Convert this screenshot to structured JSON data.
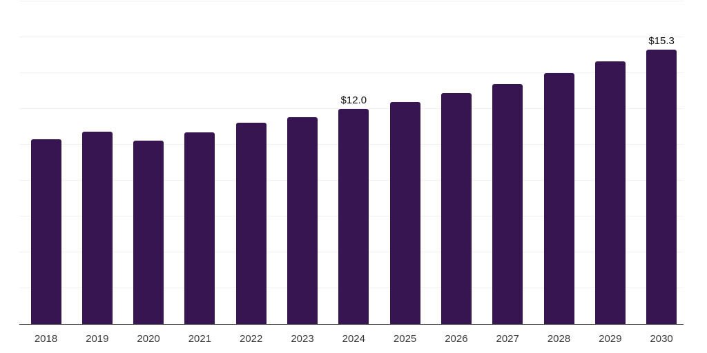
{
  "chart_data": {
    "type": "bar",
    "title": "",
    "xlabel": "",
    "ylabel": "",
    "categories": [
      "2018",
      "2019",
      "2020",
      "2021",
      "2022",
      "2023",
      "2024",
      "2025",
      "2026",
      "2027",
      "2028",
      "2029",
      "2030"
    ],
    "values": [
      10.3,
      10.75,
      10.25,
      10.7,
      11.25,
      11.55,
      12.0,
      12.4,
      12.9,
      13.4,
      14.0,
      14.65,
      15.3
    ],
    "data_labels": [
      {
        "category": "2024",
        "text": "$12.0"
      },
      {
        "category": "2030",
        "text": "$15.3"
      }
    ],
    "ylim": [
      0,
      18
    ],
    "ytick_step": 2,
    "ytick_labels_shown": false,
    "grid": "horizontal",
    "legend": "none",
    "colors": {
      "bar": "#371550",
      "axis": "#444444",
      "gridline": "#f2f2f2",
      "tick_label": "#383838",
      "data_label": "#0f0f0f",
      "background": "#ffffff"
    }
  }
}
